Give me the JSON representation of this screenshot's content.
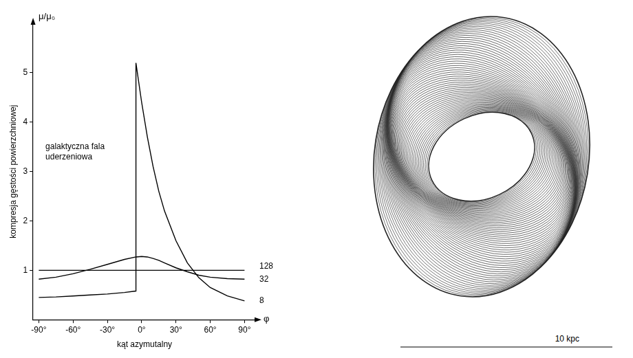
{
  "chart_data": {
    "type": "line",
    "x_label": "kąt azymutalny",
    "y_label": "kompresja gęstości powierzchniowej",
    "y_symbol": "μ/μ₀",
    "x_symbol": "φ",
    "annotation": "galaktyczna fala uderzeniowa",
    "x": [
      -90,
      -75,
      -60,
      -45,
      -30,
      -15,
      -5,
      -5,
      0,
      5,
      10,
      15,
      20,
      30,
      40,
      50,
      60,
      75,
      90
    ],
    "series": [
      {
        "name": "128",
        "color": "#000000",
        "values": [
          1,
          1,
          1,
          1,
          1,
          1,
          1,
          1,
          1,
          1,
          1,
          1,
          1,
          1,
          1,
          1,
          1,
          1,
          1
        ]
      },
      {
        "name": "32",
        "color": "#000000",
        "values": [
          0.82,
          0.86,
          0.93,
          1.02,
          1.12,
          1.22,
          1.27,
          1.27,
          1.28,
          1.27,
          1.24,
          1.2,
          1.15,
          1.05,
          0.97,
          0.9,
          0.86,
          0.83,
          0.82
        ]
      },
      {
        "name": "8",
        "color": "#000000",
        "values": [
          0.45,
          0.46,
          0.48,
          0.5,
          0.52,
          0.55,
          0.58,
          5.2,
          4.4,
          3.7,
          3.1,
          2.6,
          2.2,
          1.6,
          1.15,
          0.85,
          0.65,
          0.48,
          0.38
        ]
      }
    ],
    "xlim": [
      -95,
      100
    ],
    "ylim": [
      0,
      6
    ],
    "xticks": [
      {
        "value": -90,
        "label": "-90°"
      },
      {
        "value": -60,
        "label": "-60°"
      },
      {
        "value": -30,
        "label": "-30°"
      },
      {
        "value": 0,
        "label": "0°"
      },
      {
        "value": 30,
        "label": "30°"
      },
      {
        "value": 60,
        "label": "60°"
      },
      {
        "value": 90,
        "label": "90°"
      }
    ],
    "yticks": [
      1,
      2,
      3,
      4,
      5
    ],
    "grid": false
  },
  "diagram": {
    "scale_bar_label": "10 kpc"
  }
}
